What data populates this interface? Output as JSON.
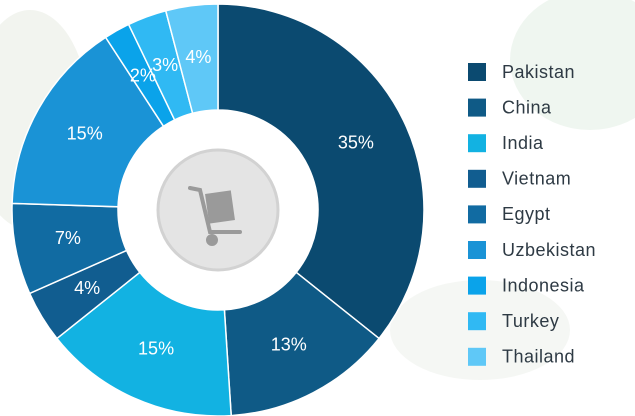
{
  "chart_data": {
    "type": "pie",
    "donut": true,
    "categories": [
      "Pakistan",
      "China",
      "India",
      "Vietnam",
      "Egypt",
      "Uzbekistan",
      "Indonesia",
      "Turkey",
      "Thailand"
    ],
    "values": [
      35,
      13,
      15,
      4,
      7,
      15,
      2,
      3,
      4
    ],
    "value_labels": [
      "35%",
      "13%",
      "15%",
      "4%",
      "7%",
      "15%",
      "2%",
      "3%",
      "4%"
    ],
    "colors": [
      "#0b4a70",
      "#0f5a86",
      "#12b2e2",
      "#115d90",
      "#116ba2",
      "#1a93d6",
      "#0aa3ea",
      "#30b9f3",
      "#5fc8f7"
    ],
    "legend": "right"
  }
}
